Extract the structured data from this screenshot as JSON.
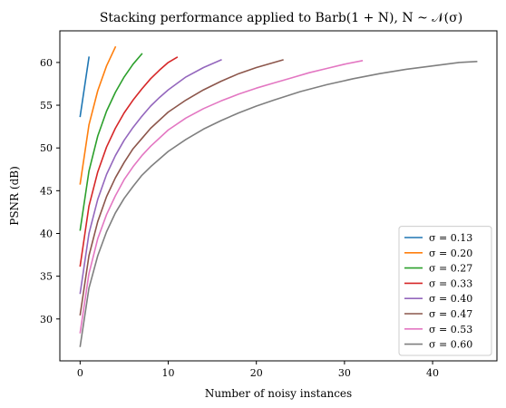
{
  "chart_data": {
    "type": "line",
    "title": "Stacking performance applied to Barb(1 + N), N ~ 𝒩(σ)",
    "xlabel": "Number of noisy instances",
    "ylabel": "PSNR (dB)",
    "xlim": [
      -2.3,
      47.3
    ],
    "ylim": [
      25.1,
      63.7
    ],
    "xticks": [
      0,
      10,
      20,
      30,
      40
    ],
    "yticks": [
      30,
      35,
      40,
      45,
      50,
      55,
      60
    ],
    "grid": false,
    "legend_position": "lower-right",
    "series": [
      {
        "name": "σ = 0.13",
        "color": "#1f77b4",
        "x": [
          0,
          1
        ],
        "y": [
          53.7,
          60.6
        ]
      },
      {
        "name": "σ = 0.20",
        "color": "#ff7f0e",
        "x": [
          0,
          1,
          2,
          3,
          4
        ],
        "y": [
          45.8,
          52.7,
          56.7,
          59.6,
          61.8
        ]
      },
      {
        "name": "σ = 0.27",
        "color": "#2ca02c",
        "x": [
          0,
          1,
          2,
          3,
          4,
          5,
          6,
          7
        ],
        "y": [
          40.4,
          47.3,
          51.4,
          54.3,
          56.5,
          58.3,
          59.8,
          61.0
        ]
      },
      {
        "name": "σ = 0.33",
        "color": "#d62728",
        "x": [
          0,
          1,
          2,
          3,
          4,
          5,
          6,
          7,
          8,
          9,
          10,
          11
        ],
        "y": [
          36.2,
          43.2,
          47.2,
          50.1,
          52.3,
          54.1,
          55.6,
          56.9,
          58.1,
          59.1,
          60.0,
          60.6
        ]
      },
      {
        "name": "σ = 0.40",
        "color": "#9467bd",
        "x": [
          0,
          1,
          2,
          3,
          4,
          5,
          6,
          7,
          8,
          9,
          10,
          12,
          14,
          16
        ],
        "y": [
          33.0,
          40.0,
          44.0,
          46.9,
          49.1,
          50.9,
          52.4,
          53.7,
          54.9,
          55.9,
          56.8,
          58.3,
          59.4,
          60.3
        ]
      },
      {
        "name": "σ = 0.47",
        "color": "#8c564b",
        "x": [
          0,
          1,
          2,
          3,
          4,
          5,
          6,
          7,
          8,
          10,
          12,
          14,
          16,
          18,
          20,
          23
        ],
        "y": [
          30.5,
          37.4,
          41.4,
          44.3,
          46.5,
          48.3,
          49.9,
          51.1,
          52.3,
          54.2,
          55.6,
          56.8,
          57.8,
          58.7,
          59.4,
          60.3
        ]
      },
      {
        "name": "σ = 0.53",
        "color": "#e377c2",
        "x": [
          0,
          1,
          2,
          3,
          4,
          5,
          6,
          7,
          8,
          10,
          12,
          14,
          16,
          18,
          20,
          22,
          24,
          26,
          28,
          30,
          32
        ],
        "y": [
          28.4,
          35.3,
          39.4,
          42.2,
          44.4,
          46.3,
          47.8,
          49.1,
          50.2,
          52.1,
          53.5,
          54.6,
          55.5,
          56.3,
          57.0,
          57.6,
          58.2,
          58.8,
          59.3,
          59.8,
          60.2
        ]
      },
      {
        "name": "σ = 0.60",
        "color": "#7f7f7f",
        "x": [
          0,
          1,
          2,
          3,
          4,
          5,
          6,
          7,
          8,
          10,
          12,
          14,
          16,
          18,
          20,
          22,
          25,
          28,
          31,
          34,
          37,
          40,
          43,
          45
        ],
        "y": [
          26.8,
          33.6,
          37.4,
          40.2,
          42.4,
          44.1,
          45.5,
          46.8,
          47.8,
          49.6,
          51.0,
          52.2,
          53.2,
          54.1,
          54.9,
          55.6,
          56.6,
          57.4,
          58.1,
          58.7,
          59.2,
          59.6,
          60.0,
          60.1
        ]
      }
    ]
  }
}
